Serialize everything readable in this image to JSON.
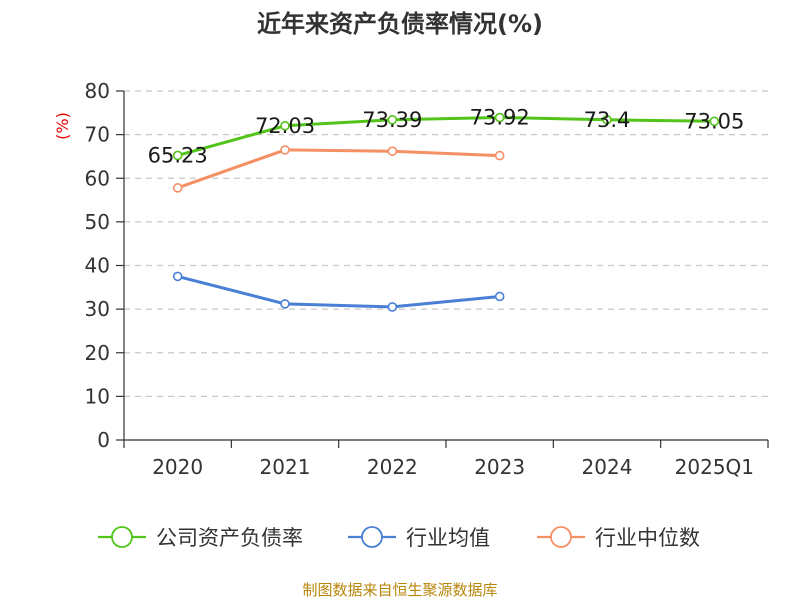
{
  "chart_data": {
    "type": "line",
    "title": "近年来资产负债率情况(%)",
    "ylabel": "(%)",
    "xlabel": "",
    "ylim": [
      0,
      80
    ],
    "yticks": [
      0,
      10,
      20,
      30,
      40,
      50,
      60,
      70,
      80
    ],
    "categories": [
      "2020",
      "2021",
      "2022",
      "2023",
      "2024",
      "2025Q1"
    ],
    "grid": true,
    "legend_position": "bottom",
    "series": [
      {
        "name": "公司资产负债率",
        "color": "#52c41a",
        "values": [
          65.23,
          72.03,
          73.39,
          73.92,
          73.4,
          73.05
        ],
        "labels": [
          "65.23",
          "72.03",
          "73.39",
          "73.92",
          "73.4",
          "73.05"
        ]
      },
      {
        "name": "行业均值",
        "color": "#4a7fd6",
        "values": [
          37.5,
          31.2,
          30.5,
          32.9,
          null,
          null
        ]
      },
      {
        "name": "行业中位数",
        "color": "#f59064",
        "values": [
          57.8,
          66.5,
          66.2,
          65.2,
          null,
          null
        ]
      }
    ]
  },
  "source": "制图数据来自恒生聚源数据库"
}
